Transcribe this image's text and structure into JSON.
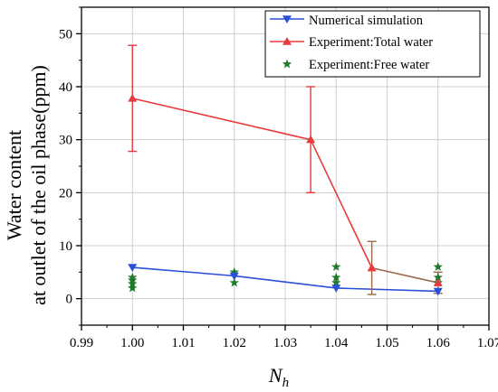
{
  "chart_data": {
    "type": "line",
    "xlabel_main": "N",
    "xlabel_sub": "h",
    "ylabel_lines": [
      "Water content",
      "at outlet of the oil phase(ppm)"
    ],
    "xlim": [
      0.99,
      1.07
    ],
    "ylim": [
      -5,
      55
    ],
    "xticks": [
      "0.99",
      "1.00",
      "1.01",
      "1.02",
      "1.03",
      "1.04",
      "1.05",
      "1.06",
      "1.07"
    ],
    "yticks": [
      "0",
      "10",
      "20",
      "30",
      "40",
      "50"
    ],
    "grid": true,
    "legend_position": "top-right",
    "series": [
      {
        "name": "Numerical simulation",
        "kind": "line-marker",
        "marker": "triangle-down",
        "color": "#2a4fd8",
        "x": [
          1.0,
          1.02,
          1.04,
          1.06
        ],
        "y": [
          5.9,
          4.3,
          2.0,
          1.4
        ]
      },
      {
        "name": "Experiment:Total water",
        "kind": "line-errorbar",
        "marker": "triangle-up",
        "color": "#e83a3a",
        "segment_colors": [
          "#e83a3a",
          "#e83a3a",
          "#9a6a4a",
          "#9a6a4a"
        ],
        "x": [
          1.0,
          1.035,
          1.047,
          1.06
        ],
        "y": [
          37.8,
          30.0,
          5.8,
          3.0
        ],
        "err_low": [
          27.8,
          20.0,
          0.8,
          1.0
        ],
        "err_high": [
          47.8,
          40.0,
          10.8,
          5.0
        ]
      },
      {
        "name": "Experiment:Free water",
        "kind": "scatter",
        "marker": "star",
        "color": "#1f7a2a",
        "x": [
          1.0,
          1.0,
          1.0,
          1.0,
          1.02,
          1.02,
          1.04,
          1.04,
          1.04,
          1.06,
          1.06,
          1.06
        ],
        "y": [
          2.0,
          2.8,
          3.5,
          4.0,
          3.0,
          5.0,
          3.0,
          4.0,
          6.0,
          3.0,
          4.0,
          6.0
        ]
      }
    ]
  }
}
